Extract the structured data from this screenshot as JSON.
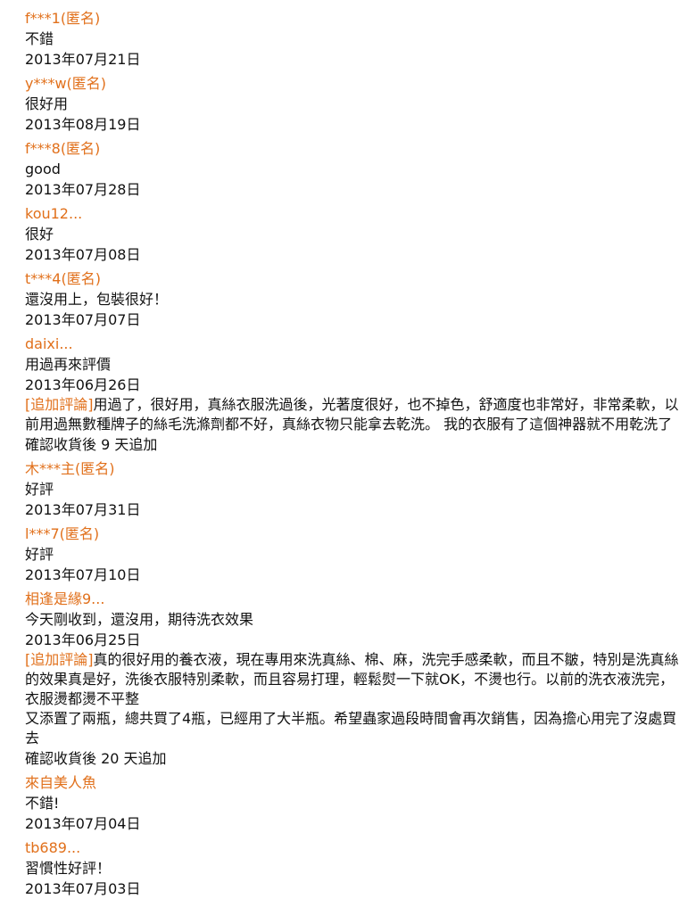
{
  "colors": {
    "accent": "#e1701b",
    "text": "#111111"
  },
  "reviews": [
    {
      "user": "f***1(匿名)",
      "text": "不錯",
      "date": "2013年07月21日"
    },
    {
      "user": "y***w(匿名)",
      "text": "很好用",
      "date": "2013年08月19日"
    },
    {
      "user": "f***8(匿名)",
      "text": "good",
      "date": "2013年07月28日"
    },
    {
      "user": "kou12...",
      "text": "很好",
      "date": "2013年07月08日"
    },
    {
      "user": "t***4(匿名)",
      "text": "還沒用上，包裝很好！",
      "date": "2013年07月07日"
    },
    {
      "user": "daixi...",
      "text": "用過再來評價",
      "date": "2013年06月26日",
      "followup_tag": "[追加評論]",
      "followup_text": "用過了，很好用，真絲衣服洗過後，光著度很好，也不掉色，舒適度也非常好，非常柔軟，以前用過無數種牌子的絲毛洗滌劑都不好，真絲衣物只能拿去乾洗。 我的衣服有了這個神器就不用乾洗了",
      "followup_meta": "確認收貨後 9 天追加"
    },
    {
      "user": "木***主(匿名)",
      "text": "好評",
      "date": "2013年07月31日"
    },
    {
      "user": "l***7(匿名)",
      "text": "好評",
      "date": "2013年07月10日"
    },
    {
      "user": "相逢是緣9...",
      "text": "今天剛收到，還沒用，期待洗衣效果",
      "date": "2013年06月25日",
      "followup_tag": "[追加評論]",
      "followup_text": "真的很好用的養衣液，現在專用來洗真絲、棉、麻，洗完手感柔軟，而且不皺，特別是洗真絲的效果真是好，洗後衣服特別柔軟，而且容易打理，輕鬆熨一下就OK，不燙也行。以前的洗衣液洗完，衣服燙都燙不平整\n又添置了兩瓶，總共買了4瓶，已經用了大半瓶。希望蟲家過段時間會再次銷售，因為擔心用完了沒處買去",
      "followup_meta": "確認收貨後 20 天追加"
    },
    {
      "user": "來自美人魚",
      "text": "不錯!",
      "date": "2013年07月04日"
    },
    {
      "user": "tb689...",
      "text": "習慣性好評！",
      "date": "2013年07月03日"
    }
  ]
}
